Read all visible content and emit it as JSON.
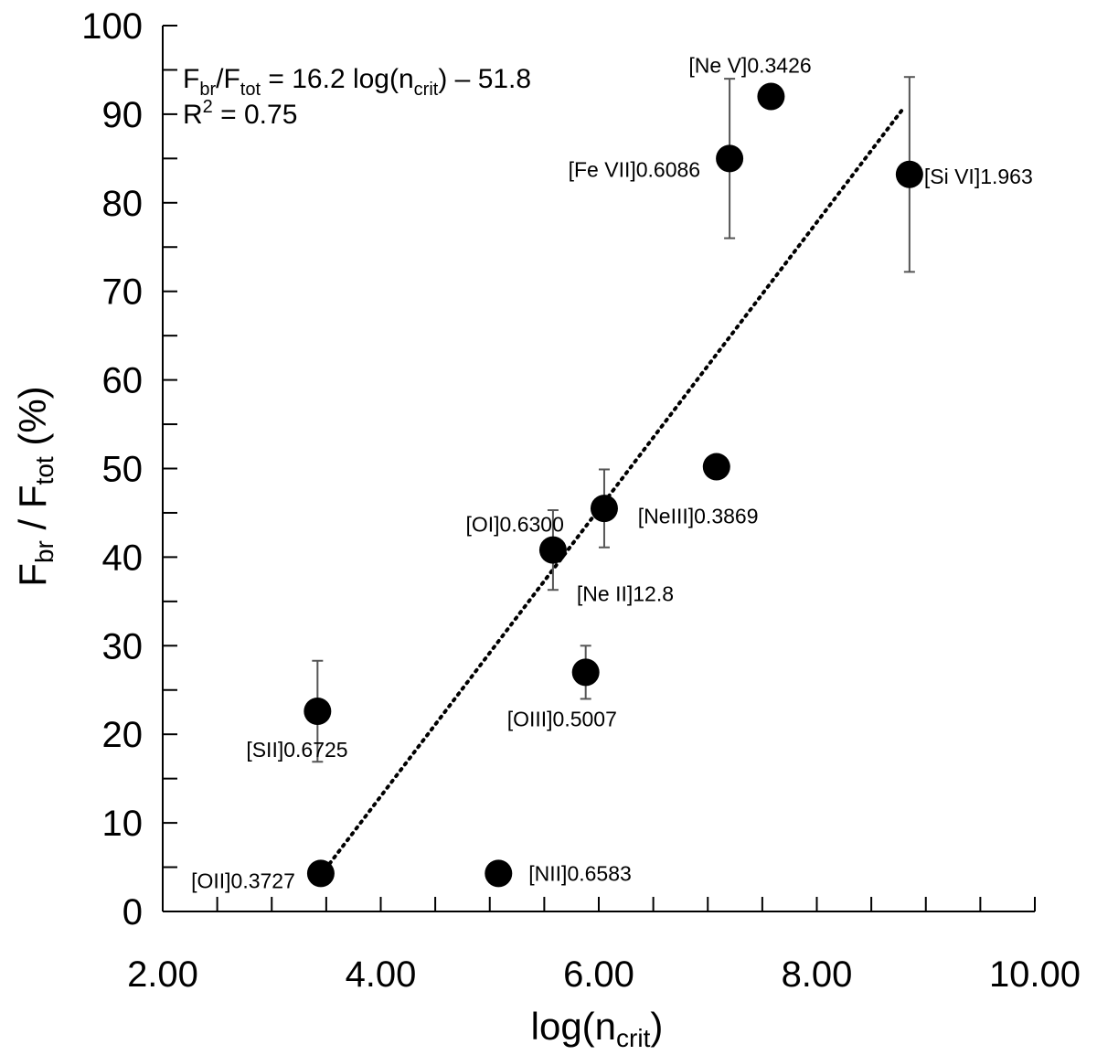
{
  "chart_data": {
    "type": "scatter",
    "title": "",
    "xlabel": {
      "main": "log(n",
      "sub": "crit",
      "end": ")"
    },
    "ylabel": {
      "p1": "F",
      "s1": "br",
      "p2": " / F",
      "s2": "tot",
      "p3": " (%)"
    },
    "xlim": [
      2.0,
      10.0
    ],
    "ylim": [
      0,
      100
    ],
    "x_ticks": [
      "2.00",
      "4.00",
      "6.00",
      "8.00",
      "10.00"
    ],
    "y_ticks": [
      "0",
      "10",
      "20",
      "30",
      "40",
      "50",
      "60",
      "70",
      "80",
      "90",
      "100"
    ],
    "fit": {
      "type": "linear",
      "slope": 16.2,
      "intercept": -51.8,
      "x_range": [
        3.45,
        8.8
      ]
    },
    "equation": {
      "F": "F",
      "br": "br",
      "slash": "/F",
      "tot": "tot",
      "rhs1": " = 16.2 log(n",
      "crit": "crit",
      "rhs2": ") – 51.8",
      "R": "R",
      "sq": "2",
      "rhs3": " = 0.75"
    },
    "points": [
      {
        "label": "[OII]0.3727",
        "x": 3.45,
        "y": 4.3,
        "err": null
      },
      {
        "label": "[SII]0.6725",
        "x": 3.42,
        "y": 22.6,
        "err": 5.7
      },
      {
        "label": "[NII]0.6583",
        "x": 5.08,
        "y": 4.3,
        "err": null
      },
      {
        "label": "[OI]0.6300",
        "x": 5.58,
        "y": 40.8,
        "err": 4.5
      },
      {
        "label": "[Ne II]12.8",
        "x": 5.58,
        "y": 40.8,
        "err": null
      },
      {
        "label": "[NeIII]0.3869",
        "x": 7.08,
        "y": 50.2,
        "err": null
      },
      {
        "label": "[OIII]0.5007",
        "x": 5.88,
        "y": 27.0,
        "err": 3.0
      },
      {
        "label": "[Fe VII]0.6086",
        "x": 7.2,
        "y": 85.0,
        "err": 9.0
      },
      {
        "label": "[Ne V]0.3426",
        "x": 7.58,
        "y": 92.0,
        "err": null
      },
      {
        "label": "[Si VI]1.963",
        "x": 8.85,
        "y": 83.2,
        "err": 11.0
      },
      {
        "label": "",
        "x": 6.05,
        "y": 45.5,
        "err": 4.4
      }
    ]
  }
}
